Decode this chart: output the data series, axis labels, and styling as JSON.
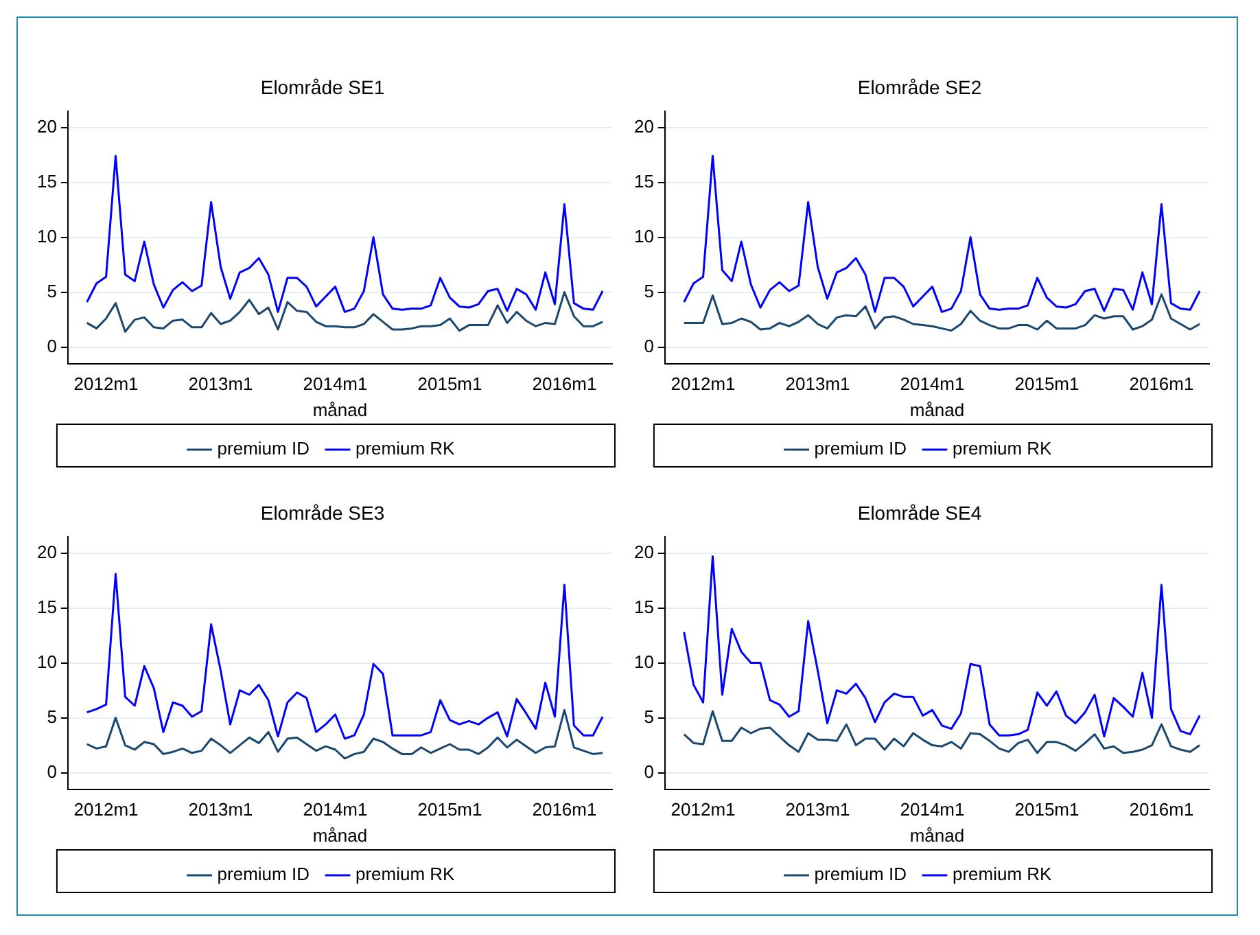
{
  "chart_data": [
    {
      "type": "line",
      "title": "Elområde SE1",
      "xlabel": "månad",
      "xlim": [
        "2011-09",
        "2016-06"
      ],
      "xticks": [
        {
          "value": "2012-01",
          "label": "2012m1"
        },
        {
          "value": "2013-01",
          "label": "2013m1"
        },
        {
          "value": "2014-01",
          "label": "2014m1"
        },
        {
          "value": "2015-01",
          "label": "2015m1"
        },
        {
          "value": "2016-01",
          "label": "2016m1"
        }
      ],
      "ylim": [
        -1.5,
        21.5
      ],
      "yticks": [
        0,
        5,
        10,
        15,
        20
      ],
      "grid": "y",
      "legend": "bottom",
      "marker": "none",
      "line_style": "solid",
      "x": [
        "2011-11",
        "2011-12",
        "2012-01",
        "2012-02",
        "2012-03",
        "2012-04",
        "2012-05",
        "2012-06",
        "2012-07",
        "2012-08",
        "2012-09",
        "2012-10",
        "2012-11",
        "2012-12",
        "2013-01",
        "2013-02",
        "2013-03",
        "2013-04",
        "2013-05",
        "2013-06",
        "2013-07",
        "2013-08",
        "2013-09",
        "2013-10",
        "2013-11",
        "2013-12",
        "2014-01",
        "2014-02",
        "2014-03",
        "2014-04",
        "2014-05",
        "2014-06",
        "2014-07",
        "2014-08",
        "2014-09",
        "2014-10",
        "2014-11",
        "2014-12",
        "2015-01",
        "2015-02",
        "2015-03",
        "2015-04",
        "2015-05",
        "2015-06",
        "2015-07",
        "2015-08",
        "2015-09",
        "2015-10",
        "2015-11",
        "2015-12",
        "2016-01",
        "2016-02",
        "2016-03",
        "2016-04",
        "2016-05"
      ],
      "series": [
        {
          "name": "premium ID",
          "color": "#1a476f",
          "values": [
            2.2,
            1.7,
            2.6,
            4.0,
            1.4,
            2.5,
            2.7,
            1.8,
            1.7,
            2.4,
            2.5,
            1.8,
            1.8,
            3.1,
            2.1,
            2.4,
            3.2,
            4.3,
            3.0,
            3.6,
            1.6,
            4.1,
            3.3,
            3.2,
            2.3,
            1.9,
            1.9,
            1.8,
            1.8,
            2.1,
            3.0,
            2.3,
            1.6,
            1.6,
            1.7,
            1.9,
            1.9,
            2.0,
            2.6,
            1.5,
            2.0,
            2.0,
            2.0,
            3.8,
            2.2,
            3.2,
            2.4,
            1.9,
            2.2,
            2.1,
            5.0,
            2.8,
            1.9,
            1.9,
            2.3
          ]
        },
        {
          "name": "premium RK",
          "color": "#0000ff",
          "values": [
            4.1,
            5.8,
            6.4,
            17.4,
            6.6,
            6.0,
            9.6,
            5.7,
            3.6,
            5.2,
            5.9,
            5.1,
            5.6,
            13.2,
            7.3,
            4.4,
            6.8,
            7.2,
            8.1,
            6.6,
            3.2,
            6.3,
            6.3,
            5.5,
            3.7,
            4.6,
            5.5,
            3.2,
            3.5,
            5.1,
            10.0,
            4.8,
            3.5,
            3.4,
            3.5,
            3.5,
            3.8,
            6.3,
            4.5,
            3.7,
            3.6,
            3.9,
            5.1,
            5.3,
            3.3,
            5.3,
            4.8,
            3.4,
            6.8,
            3.9,
            13.0,
            4.0,
            3.5,
            3.4,
            5.1
          ]
        }
      ]
    },
    {
      "type": "line",
      "title": "Elområde SE2",
      "xlabel": "månad",
      "xlim": [
        "2011-09",
        "2016-06"
      ],
      "xticks": [
        {
          "value": "2012-01",
          "label": "2012m1"
        },
        {
          "value": "2013-01",
          "label": "2013m1"
        },
        {
          "value": "2014-01",
          "label": "2014m1"
        },
        {
          "value": "2015-01",
          "label": "2015m1"
        },
        {
          "value": "2016-01",
          "label": "2016m1"
        }
      ],
      "ylim": [
        -1.5,
        21.5
      ],
      "yticks": [
        0,
        5,
        10,
        15,
        20
      ],
      "grid": "y",
      "legend": "bottom",
      "marker": "none",
      "line_style": "solid",
      "x": [
        "2011-11",
        "2011-12",
        "2012-01",
        "2012-02",
        "2012-03",
        "2012-04",
        "2012-05",
        "2012-06",
        "2012-07",
        "2012-08",
        "2012-09",
        "2012-10",
        "2012-11",
        "2012-12",
        "2013-01",
        "2013-02",
        "2013-03",
        "2013-04",
        "2013-05",
        "2013-06",
        "2013-07",
        "2013-08",
        "2013-09",
        "2013-10",
        "2013-11",
        "2013-12",
        "2014-01",
        "2014-02",
        "2014-03",
        "2014-04",
        "2014-05",
        "2014-06",
        "2014-07",
        "2014-08",
        "2014-09",
        "2014-10",
        "2014-11",
        "2014-12",
        "2015-01",
        "2015-02",
        "2015-03",
        "2015-04",
        "2015-05",
        "2015-06",
        "2015-07",
        "2015-08",
        "2015-09",
        "2015-10",
        "2015-11",
        "2015-12",
        "2016-01",
        "2016-02",
        "2016-03",
        "2016-04",
        "2016-05"
      ],
      "series": [
        {
          "name": "premium ID",
          "color": "#1a476f",
          "values": [
            2.2,
            2.2,
            2.2,
            4.7,
            2.1,
            2.2,
            2.6,
            2.3,
            1.6,
            1.7,
            2.2,
            1.9,
            2.3,
            2.9,
            2.1,
            1.7,
            2.7,
            2.9,
            2.8,
            3.7,
            1.7,
            2.7,
            2.8,
            2.5,
            2.1,
            2.0,
            1.9,
            1.7,
            1.5,
            2.1,
            3.3,
            2.4,
            2.0,
            1.7,
            1.7,
            2.0,
            2.0,
            1.6,
            2.4,
            1.7,
            1.7,
            1.7,
            2.0,
            2.9,
            2.6,
            2.8,
            2.8,
            1.6,
            1.9,
            2.5,
            4.8,
            2.6,
            2.1,
            1.6,
            2.1
          ]
        },
        {
          "name": "premium RK",
          "color": "#0000ff",
          "values": [
            4.1,
            5.8,
            6.4,
            17.4,
            7.0,
            6.0,
            9.6,
            5.7,
            3.6,
            5.2,
            5.9,
            5.1,
            5.6,
            13.2,
            7.3,
            4.4,
            6.8,
            7.2,
            8.1,
            6.6,
            3.2,
            6.3,
            6.3,
            5.5,
            3.7,
            4.6,
            5.5,
            3.2,
            3.5,
            5.1,
            10.0,
            4.8,
            3.5,
            3.4,
            3.5,
            3.5,
            3.8,
            6.3,
            4.5,
            3.7,
            3.6,
            3.9,
            5.1,
            5.3,
            3.3,
            5.3,
            5.2,
            3.4,
            6.8,
            3.9,
            13.0,
            4.0,
            3.5,
            3.4,
            5.1
          ]
        }
      ]
    },
    {
      "type": "line",
      "title": "Elområde SE3",
      "xlabel": "månad",
      "xlim": [
        "2011-09",
        "2016-06"
      ],
      "xticks": [
        {
          "value": "2012-01",
          "label": "2012m1"
        },
        {
          "value": "2013-01",
          "label": "2013m1"
        },
        {
          "value": "2014-01",
          "label": "2014m1"
        },
        {
          "value": "2015-01",
          "label": "2015m1"
        },
        {
          "value": "2016-01",
          "label": "2016m1"
        }
      ],
      "ylim": [
        -1.5,
        21.5
      ],
      "yticks": [
        0,
        5,
        10,
        15,
        20
      ],
      "grid": "y",
      "legend": "bottom",
      "marker": "none",
      "line_style": "solid",
      "x": [
        "2011-11",
        "2011-12",
        "2012-01",
        "2012-02",
        "2012-03",
        "2012-04",
        "2012-05",
        "2012-06",
        "2012-07",
        "2012-08",
        "2012-09",
        "2012-10",
        "2012-11",
        "2012-12",
        "2013-01",
        "2013-02",
        "2013-03",
        "2013-04",
        "2013-05",
        "2013-06",
        "2013-07",
        "2013-08",
        "2013-09",
        "2013-10",
        "2013-11",
        "2013-12",
        "2014-01",
        "2014-02",
        "2014-03",
        "2014-04",
        "2014-05",
        "2014-06",
        "2014-07",
        "2014-08",
        "2014-09",
        "2014-10",
        "2014-11",
        "2014-12",
        "2015-01",
        "2015-02",
        "2015-03",
        "2015-04",
        "2015-05",
        "2015-06",
        "2015-07",
        "2015-08",
        "2015-09",
        "2015-10",
        "2015-11",
        "2015-12",
        "2016-01",
        "2016-02",
        "2016-03",
        "2016-04",
        "2016-05"
      ],
      "series": [
        {
          "name": "premium ID",
          "color": "#1a476f",
          "values": [
            2.6,
            2.2,
            2.4,
            5.0,
            2.5,
            2.1,
            2.8,
            2.6,
            1.7,
            1.9,
            2.2,
            1.8,
            2.0,
            3.1,
            2.5,
            1.8,
            2.5,
            3.2,
            2.7,
            3.7,
            1.9,
            3.1,
            3.2,
            2.6,
            2.0,
            2.4,
            2.1,
            1.3,
            1.7,
            1.9,
            3.1,
            2.8,
            2.2,
            1.7,
            1.7,
            2.3,
            1.8,
            2.2,
            2.6,
            2.1,
            2.1,
            1.7,
            2.3,
            3.2,
            2.3,
            3.0,
            2.4,
            1.8,
            2.3,
            2.4,
            5.7,
            2.3,
            2.0,
            1.7,
            1.8
          ]
        },
        {
          "name": "premium RK",
          "color": "#0000ff",
          "values": [
            5.5,
            5.8,
            6.2,
            18.1,
            6.9,
            6.1,
            9.7,
            7.7,
            3.7,
            6.4,
            6.1,
            5.1,
            5.6,
            13.5,
            9.3,
            4.4,
            7.5,
            7.1,
            8.0,
            6.6,
            3.3,
            6.4,
            7.3,
            6.8,
            3.7,
            4.4,
            5.3,
            3.1,
            3.4,
            5.3,
            9.9,
            9.0,
            3.4,
            3.4,
            3.4,
            3.4,
            3.7,
            6.6,
            4.8,
            4.4,
            4.7,
            4.4,
            5.0,
            5.5,
            3.3,
            6.7,
            5.4,
            4.0,
            8.2,
            5.1,
            17.1,
            4.3,
            3.4,
            3.4,
            5.1
          ]
        }
      ]
    },
    {
      "type": "line",
      "title": "Elområde SE4",
      "xlabel": "månad",
      "xlim": [
        "2011-09",
        "2016-06"
      ],
      "xticks": [
        {
          "value": "2012-01",
          "label": "2012m1"
        },
        {
          "value": "2013-01",
          "label": "2013m1"
        },
        {
          "value": "2014-01",
          "label": "2014m1"
        },
        {
          "value": "2015-01",
          "label": "2015m1"
        },
        {
          "value": "2016-01",
          "label": "2016m1"
        }
      ],
      "ylim": [
        -1.5,
        21.5
      ],
      "yticks": [
        0,
        5,
        10,
        15,
        20
      ],
      "grid": "y",
      "legend": "bottom",
      "marker": "none",
      "line_style": "solid",
      "x": [
        "2011-11",
        "2011-12",
        "2012-01",
        "2012-02",
        "2012-03",
        "2012-04",
        "2012-05",
        "2012-06",
        "2012-07",
        "2012-08",
        "2012-09",
        "2012-10",
        "2012-11",
        "2012-12",
        "2013-01",
        "2013-02",
        "2013-03",
        "2013-04",
        "2013-05",
        "2013-06",
        "2013-07",
        "2013-08",
        "2013-09",
        "2013-10",
        "2013-11",
        "2013-12",
        "2014-01",
        "2014-02",
        "2014-03",
        "2014-04",
        "2014-05",
        "2014-06",
        "2014-07",
        "2014-08",
        "2014-09",
        "2014-10",
        "2014-11",
        "2014-12",
        "2015-01",
        "2015-02",
        "2015-03",
        "2015-04",
        "2015-05",
        "2015-06",
        "2015-07",
        "2015-08",
        "2015-09",
        "2015-10",
        "2015-11",
        "2015-12",
        "2016-01",
        "2016-02",
        "2016-03",
        "2016-04",
        "2016-05"
      ],
      "series": [
        {
          "name": "premium ID",
          "color": "#1a476f",
          "values": [
            3.5,
            2.7,
            2.6,
            5.6,
            2.9,
            2.9,
            4.1,
            3.6,
            4.0,
            4.1,
            3.3,
            2.5,
            1.9,
            3.6,
            3.0,
            3.0,
            2.9,
            4.4,
            2.5,
            3.1,
            3.1,
            2.1,
            3.1,
            2.4,
            3.6,
            3.0,
            2.5,
            2.4,
            2.8,
            2.2,
            3.6,
            3.5,
            2.9,
            2.2,
            1.9,
            2.7,
            3.0,
            1.8,
            2.8,
            2.8,
            2.5,
            2.0,
            2.7,
            3.5,
            2.2,
            2.4,
            1.8,
            1.9,
            2.1,
            2.5,
            4.4,
            2.4,
            2.1,
            1.9,
            2.5
          ]
        },
        {
          "name": "premium RK",
          "color": "#0000ff",
          "values": [
            12.8,
            8.0,
            6.4,
            19.7,
            7.1,
            13.1,
            11.0,
            10.0,
            10.0,
            6.6,
            6.2,
            5.1,
            5.6,
            13.8,
            9.3,
            4.5,
            7.5,
            7.2,
            8.1,
            6.8,
            4.6,
            6.4,
            7.2,
            6.9,
            6.9,
            5.2,
            5.7,
            4.3,
            4.0,
            5.4,
            9.9,
            9.7,
            4.4,
            3.4,
            3.4,
            3.5,
            3.9,
            7.3,
            6.1,
            7.4,
            5.2,
            4.5,
            5.5,
            7.1,
            3.3,
            6.8,
            6.0,
            5.1,
            9.1,
            5.0,
            17.1,
            5.8,
            3.8,
            3.5,
            5.2
          ]
        }
      ]
    }
  ]
}
